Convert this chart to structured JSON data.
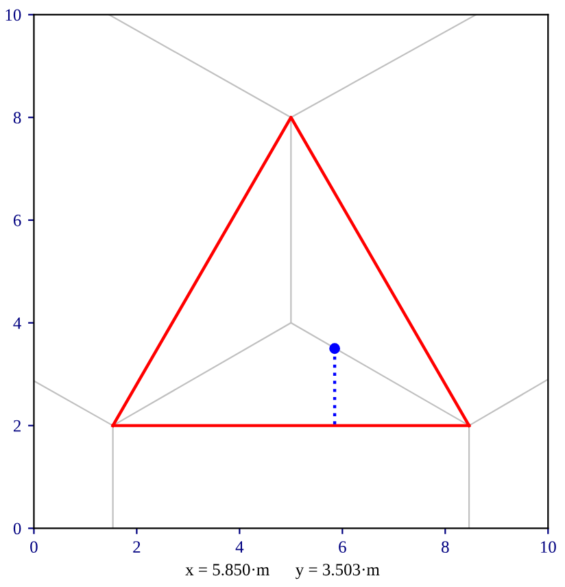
{
  "chart_data": {
    "type": "line",
    "xlim": [
      0,
      10
    ],
    "ylim": [
      0,
      10
    ],
    "xticks": [
      0,
      2,
      4,
      6,
      8,
      10
    ],
    "yticks": [
      0,
      2,
      4,
      6,
      8,
      10
    ],
    "grid": false,
    "legend": false,
    "annotations": [
      "x = 5.850·m      y = 3.503·m"
    ],
    "series": [
      {
        "color": "#c0c0c0",
        "x": [
          5,
          5
        ],
        "values": [
          4,
          8
        ]
      },
      {
        "color": "#c0c0c0",
        "x": [
          1.46,
          5,
          8.6
        ],
        "values": [
          10,
          8,
          10
        ]
      },
      {
        "color": "#c0c0c0",
        "x": [
          1.536,
          5,
          8.464
        ],
        "values": [
          2,
          4,
          2
        ]
      },
      {
        "color": "#c0c0c0",
        "x": [
          1.536,
          1.536
        ],
        "values": [
          2,
          0
        ]
      },
      {
        "color": "#c0c0c0",
        "x": [
          8.464,
          8.464
        ],
        "values": [
          2,
          0
        ]
      },
      {
        "color": "#c0c0c0",
        "x": [
          0,
          1.536
        ],
        "values": [
          2.87,
          2
        ]
      },
      {
        "color": "#c0c0c0",
        "x": [
          8.464,
          10
        ],
        "values": [
          2,
          2.9
        ]
      },
      {
        "color": "#ff0000",
        "x": [
          1.536,
          5,
          8.464
        ],
        "values": [
          2,
          8,
          2
        ]
      },
      {
        "color": "#ff0000",
        "x": [
          1.536,
          8.464
        ],
        "values": [
          2,
          2
        ]
      },
      {
        "color": "#0000ff",
        "x": [
          5.85,
          5.85
        ],
        "values": [
          3.5,
          2
        ],
        "line_style": "dotted"
      },
      {
        "type": "scatter",
        "color": "#0000ff",
        "x": [
          5.85
        ],
        "values": [
          3.5
        ],
        "marker": "circle"
      }
    ]
  }
}
